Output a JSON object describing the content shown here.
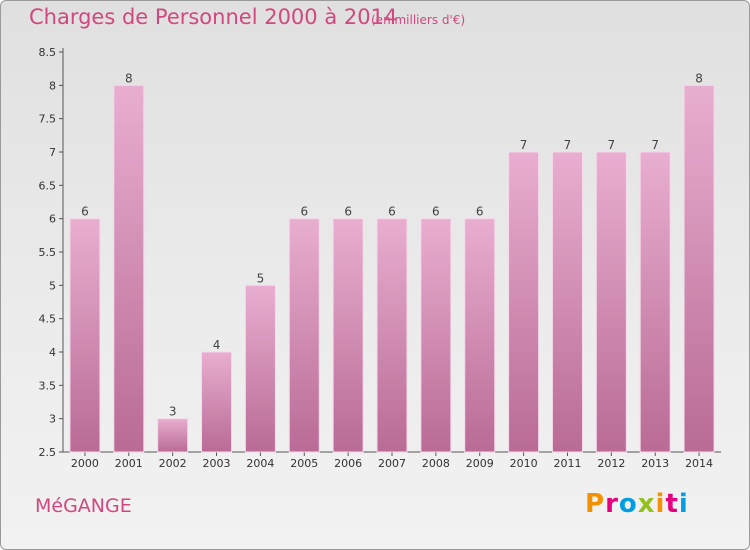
{
  "header": {
    "title": "Charges de Personnel 2000 à 2014",
    "subtitle": "(en milliers d'€)"
  },
  "footer": {
    "commune": "MéGANGE",
    "logo_text": "Proxiti",
    "logo_colors": [
      "#f39200",
      "#e6007e",
      "#009fe3",
      "#95c11f",
      "#f39200",
      "#e6007e",
      "#009fe3"
    ]
  },
  "colors": {
    "bar_top": "#e8aed0",
    "bar_bottom": "#b96b95",
    "bar_edge": "#f6d8ea",
    "title": "#d2477f"
  },
  "chart_data": {
    "type": "bar",
    "categories": [
      "2000",
      "2001",
      "2002",
      "2003",
      "2004",
      "2005",
      "2006",
      "2007",
      "2008",
      "2009",
      "2010",
      "2011",
      "2012",
      "2013",
      "2014"
    ],
    "values": [
      6,
      8,
      3,
      4,
      5,
      6,
      6,
      6,
      6,
      6,
      7,
      7,
      7,
      7,
      8
    ],
    "data_labels": [
      "6",
      "8",
      "3",
      "4",
      "5",
      "6",
      "6",
      "6",
      "6",
      "6",
      "7",
      "7",
      "7",
      "7",
      "8"
    ],
    "y_ticks": [
      "2.5",
      "3",
      "3.5",
      "4",
      "4.5",
      "5",
      "5.5",
      "6",
      "6.5",
      "7",
      "7.5",
      "8",
      "8.5"
    ],
    "ylim": [
      2.5,
      8.5
    ],
    "grid": false,
    "legend": "none"
  }
}
